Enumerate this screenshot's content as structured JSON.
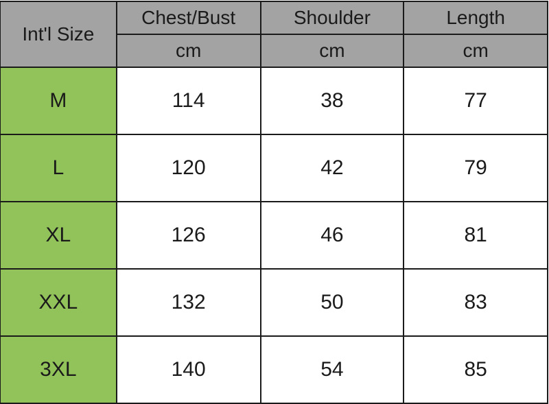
{
  "table": {
    "size_header": "Int'l Size",
    "columns": [
      {
        "label": "Chest/Bust",
        "unit": "cm"
      },
      {
        "label": "Shoulder",
        "unit": "cm"
      },
      {
        "label": "Length",
        "unit": "cm"
      }
    ],
    "rows": [
      {
        "size": "M",
        "values": [
          "114",
          "38",
          "77"
        ]
      },
      {
        "size": "L",
        "values": [
          "120",
          "42",
          "79"
        ]
      },
      {
        "size": "XL",
        "values": [
          "126",
          "46",
          "81"
        ]
      },
      {
        "size": "XXL",
        "values": [
          "132",
          "50",
          "83"
        ]
      },
      {
        "size": "3XL",
        "values": [
          "140",
          "54",
          "85"
        ]
      }
    ],
    "colors": {
      "header": "#a3a3a3",
      "size_column": "#92c35a",
      "border": "#1a1a1a"
    }
  }
}
